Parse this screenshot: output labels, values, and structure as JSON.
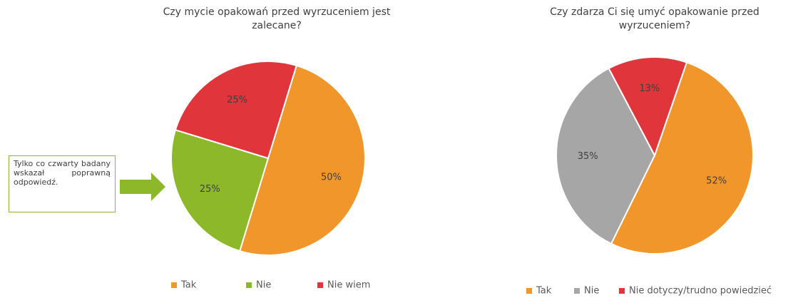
{
  "chart_data": [
    {
      "type": "pie",
      "title": "Czy mycie opakowań przed wyrzuceniem jest zalecane?",
      "categories": [
        "Tak",
        "Nie",
        "Nie wiem"
      ],
      "values": [
        50,
        25,
        25
      ],
      "value_labels": [
        "50%",
        "25%",
        "25%"
      ],
      "colors": [
        "#f0962a",
        "#8db82a",
        "#e0353a"
      ],
      "annotation": "Tylko co czwarty badany wskazał poprawną odpowiedź."
    },
    {
      "type": "pie",
      "title": "Czy zdarza Ci się umyć opakowanie przed wyrzuceniem?",
      "categories": [
        "Tak",
        "Nie",
        "Nie dotyczy/trudno powiedzieć"
      ],
      "values": [
        52,
        35,
        13
      ],
      "value_labels": [
        "52%",
        "35%",
        "13%"
      ],
      "colors": [
        "#f0962a",
        "#a6a6a6",
        "#e0353a"
      ]
    }
  ]
}
